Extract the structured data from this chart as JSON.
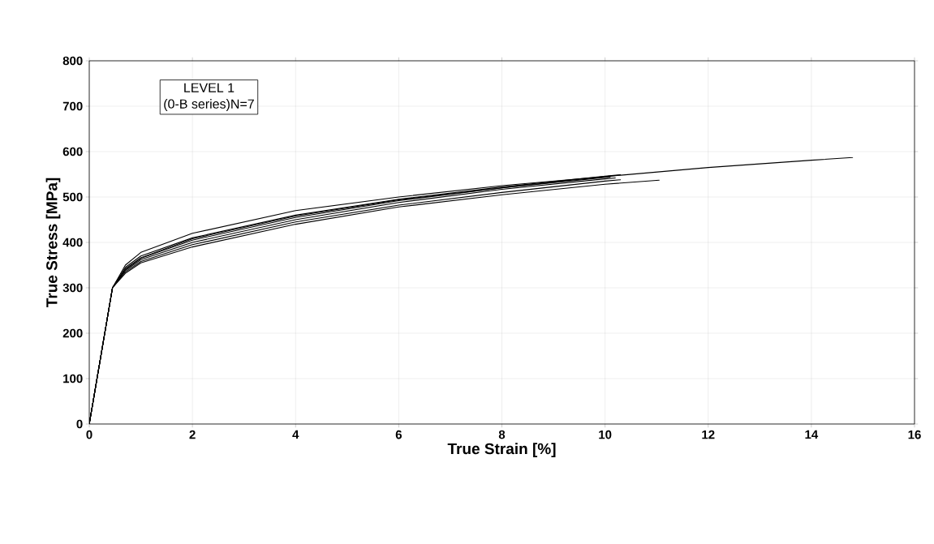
{
  "chart_data": {
    "type": "line",
    "xlabel": "True Strain [%]",
    "ylabel": "True Stress [MPa]",
    "annotations": [
      "LEVEL 1",
      "(0-B series)N=7"
    ],
    "xlim": [
      0,
      16
    ],
    "ylim": [
      0,
      800
    ],
    "xticks": [
      0,
      2,
      4,
      6,
      8,
      10,
      12,
      14,
      16
    ],
    "yticks": [
      0,
      100,
      200,
      300,
      400,
      500,
      600,
      700,
      800
    ],
    "grid": true,
    "marker": "none",
    "line_style": "solid",
    "series": [
      {
        "color": "#000000",
        "x": [
          0,
          0.45,
          0.7,
          1,
          2,
          4,
          6,
          8,
          10,
          12,
          14,
          14.8
        ],
        "values": [
          0,
          300,
          340,
          365,
          405,
          455,
          492,
          520,
          545,
          565,
          581,
          587
        ]
      },
      {
        "color": "#000000",
        "x": [
          0,
          0.45,
          0.7,
          1,
          2,
          4,
          6,
          8,
          10,
          10.2
        ],
        "values": [
          0,
          300,
          350,
          378,
          420,
          470,
          500,
          525,
          545,
          547
        ]
      },
      {
        "color": "#000000",
        "x": [
          0,
          0.45,
          0.7,
          1,
          2,
          4,
          6,
          8,
          10,
          10.3
        ],
        "values": [
          0,
          300,
          345,
          370,
          410,
          460,
          495,
          522,
          546,
          549
        ]
      },
      {
        "color": "#000000",
        "x": [
          0,
          0.45,
          0.7,
          1,
          2,
          4,
          6,
          8,
          10,
          10.2
        ],
        "values": [
          0,
          300,
          338,
          362,
          400,
          450,
          488,
          517,
          540,
          542
        ]
      },
      {
        "color": "#000000",
        "x": [
          0,
          0.45,
          0.7,
          1,
          2,
          4,
          6,
          8,
          10,
          10.3
        ],
        "values": [
          0,
          300,
          335,
          358,
          395,
          445,
          482,
          510,
          535,
          538
        ]
      },
      {
        "color": "#000000",
        "x": [
          0,
          0.45,
          0.7,
          1,
          2,
          4,
          6,
          8,
          10,
          11.05
        ],
        "values": [
          0,
          300,
          332,
          355,
          390,
          440,
          478,
          505,
          528,
          537
        ]
      },
      {
        "color": "#000000",
        "x": [
          0,
          0.45,
          0.7,
          1,
          2,
          4,
          6,
          8,
          10,
          10.1
        ],
        "values": [
          0,
          300,
          342,
          366,
          408,
          458,
          494,
          520,
          543,
          544
        ]
      }
    ]
  }
}
